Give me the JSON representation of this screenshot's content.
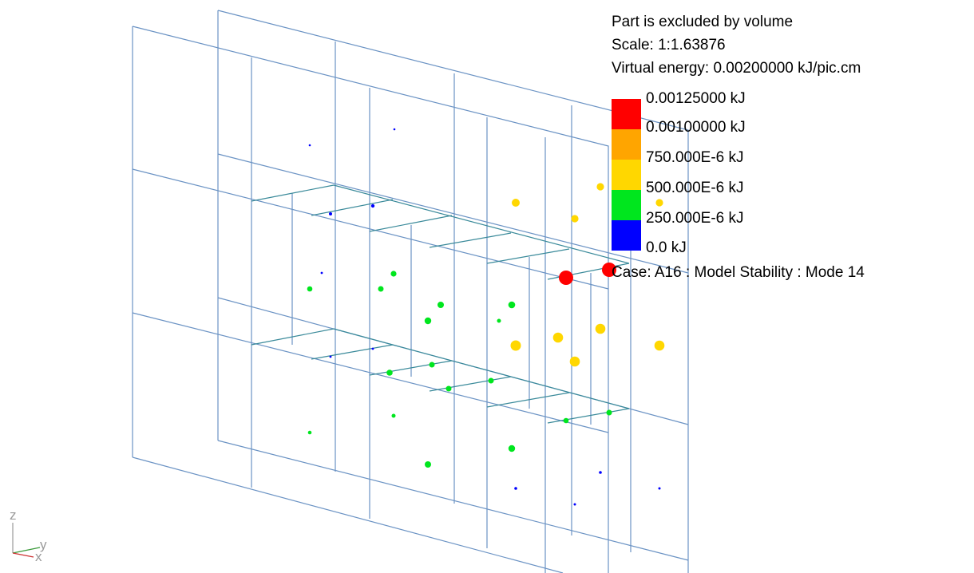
{
  "info": {
    "line1": "Part is excluded by volume",
    "line2": "Scale: 1:1.63876",
    "line3": "Virtual energy: 0.00200000 kJ/pic.cm"
  },
  "legend": {
    "colors": [
      "#ff0000",
      "#ffa500",
      "#ffd700",
      "#00e61e",
      "#0000ff"
    ],
    "labels": [
      "0.00125000 kJ",
      "0.00100000 kJ",
      "750.000E-6 kJ",
      "500.000E-6 kJ",
      "250.000E-6 kJ",
      "0.0 kJ"
    ]
  },
  "case": "Case: A16 : Model Stability : Mode 14",
  "axes": {
    "z": "z",
    "y": "y",
    "x": "x"
  },
  "colors": {
    "mesh": "#6b93c4",
    "axis_z": "#9a9a9a",
    "axis_y": "#9a9a9a",
    "axis_x": "#9a9a9a"
  }
}
